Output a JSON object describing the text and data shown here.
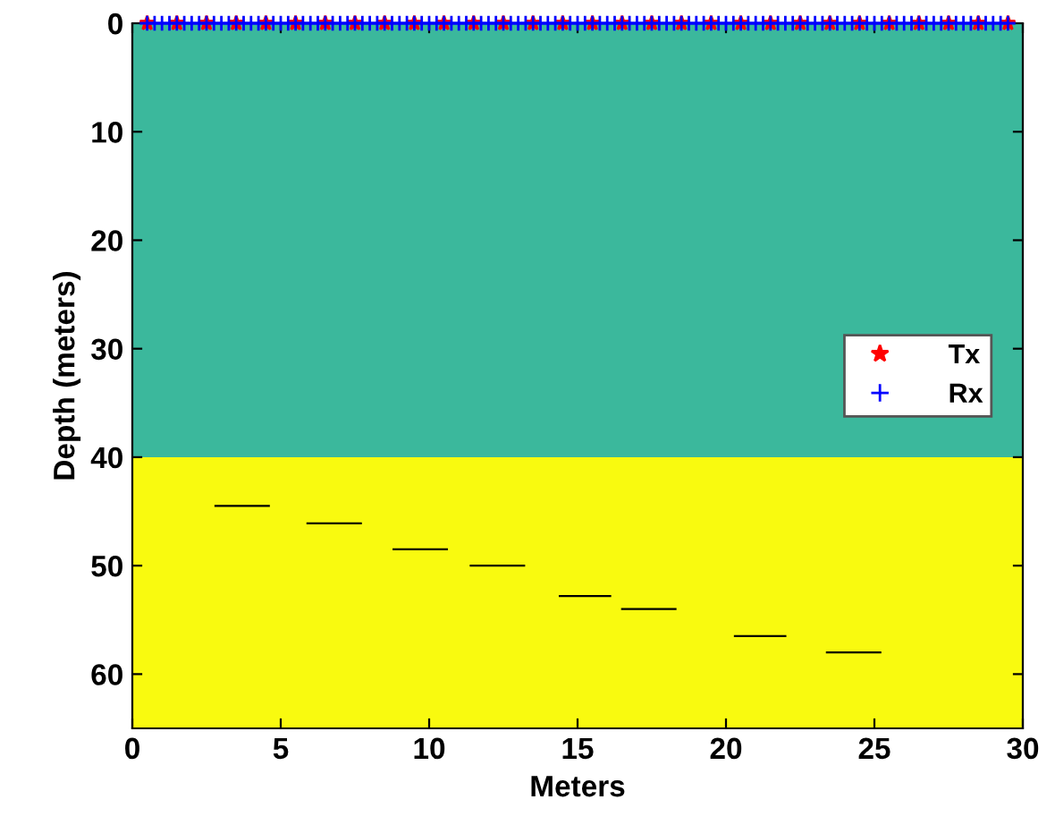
{
  "chart_data": {
    "type": "scatter",
    "xlabel": "Meters",
    "ylabel": "Depth (meters)",
    "xlim": [
      0,
      30
    ],
    "xticks": [
      0,
      5,
      10,
      15,
      20,
      25,
      30
    ],
    "ylim": [
      65,
      0
    ],
    "yticks": [
      0,
      10,
      20,
      30,
      40,
      50,
      60
    ],
    "grid": false,
    "legend": "right",
    "bands": [
      {
        "axis": "y",
        "from": 0,
        "to": 40,
        "color": "#3bb89c"
      },
      {
        "axis": "y",
        "from": 40,
        "to": 65,
        "color": "#f9fa0f"
      }
    ],
    "series": [
      {
        "type": "line",
        "color": "#000000",
        "marker": "none",
        "x": [
          2.8,
          4.6
        ],
        "values": [
          44.5,
          44.5
        ]
      },
      {
        "type": "line",
        "color": "#000000",
        "marker": "none",
        "x": [
          5.9,
          7.7
        ],
        "values": [
          46.1,
          46.1
        ]
      },
      {
        "type": "line",
        "color": "#000000",
        "marker": "none",
        "x": [
          8.8,
          10.6
        ],
        "values": [
          48.5,
          48.5
        ]
      },
      {
        "type": "line",
        "color": "#000000",
        "marker": "none",
        "x": [
          11.4,
          13.2
        ],
        "values": [
          50.0,
          50.0
        ]
      },
      {
        "type": "line",
        "color": "#000000",
        "marker": "none",
        "x": [
          14.4,
          16.1
        ],
        "values": [
          52.8,
          52.8
        ]
      },
      {
        "type": "line",
        "color": "#000000",
        "marker": "none",
        "x": [
          16.5,
          18.3
        ],
        "values": [
          54.0,
          54.0
        ]
      },
      {
        "type": "line",
        "color": "#000000",
        "marker": "none",
        "x": [
          20.3,
          22.0
        ],
        "values": [
          56.5,
          56.5
        ]
      },
      {
        "type": "line",
        "color": "#000000",
        "marker": "none",
        "x": [
          23.4,
          25.2
        ],
        "values": [
          58.0,
          58.0
        ]
      },
      {
        "name": "Tx",
        "color": "#ff0000",
        "marker": "star",
        "x": [
          0.5,
          1.5,
          2.5,
          3.5,
          4.5,
          5.5,
          6.5,
          7.5,
          8.5,
          9.5,
          10.5,
          11.5,
          12.5,
          13.5,
          14.5,
          15.5,
          16.5,
          17.5,
          18.5,
          19.5,
          20.5,
          21.5,
          22.5,
          23.5,
          24.5,
          25.5,
          26.5,
          27.5,
          28.5,
          29.5
        ],
        "values": [
          0,
          0,
          0,
          0,
          0,
          0,
          0,
          0,
          0,
          0,
          0,
          0,
          0,
          0,
          0,
          0,
          0,
          0,
          0,
          0,
          0,
          0,
          0,
          0,
          0,
          0,
          0,
          0,
          0,
          0
        ]
      },
      {
        "name": "Rx",
        "color": "#0000ff",
        "marker": "cross",
        "x": [
          0.5,
          0.75,
          1.0,
          1.25,
          1.5,
          1.75,
          2.0,
          2.25,
          2.5,
          2.75,
          3.0,
          3.25,
          3.5,
          3.75,
          4.0,
          4.25,
          4.5,
          4.75,
          5.0,
          5.25,
          5.5,
          5.75,
          6.0,
          6.25,
          6.5,
          6.75,
          7.0,
          7.25,
          7.5,
          7.75,
          8.0,
          8.25,
          8.5,
          8.75,
          9.0,
          9.25,
          9.5,
          9.75,
          10.0,
          10.25,
          10.5,
          10.75,
          11.0,
          11.25,
          11.5,
          11.75,
          12.0,
          12.25,
          12.5,
          12.75,
          13.0,
          13.25,
          13.5,
          13.75,
          14.0,
          14.25,
          14.5,
          14.75,
          15.0,
          15.25,
          15.5,
          15.75,
          16.0,
          16.25,
          16.5,
          16.75,
          17.0,
          17.25,
          17.5,
          17.75,
          18.0,
          18.25,
          18.5,
          18.75,
          19.0,
          19.25,
          19.5,
          19.75,
          20.0,
          20.25,
          20.5,
          20.75,
          21.0,
          21.25,
          21.5,
          21.75,
          22.0,
          22.25,
          22.5,
          22.75,
          23.0,
          23.25,
          23.5,
          23.75,
          24.0,
          24.25,
          24.5,
          24.75,
          25.0,
          25.25,
          25.5,
          25.75,
          26.0,
          26.25,
          26.5,
          26.75,
          27.0,
          27.25,
          27.5,
          27.75,
          28.0,
          28.25,
          28.5,
          28.75,
          29.0,
          29.25,
          29.5
        ],
        "values": [
          0,
          0,
          0,
          0,
          0,
          0,
          0,
          0,
          0,
          0,
          0,
          0,
          0,
          0,
          0,
          0,
          0,
          0,
          0,
          0,
          0,
          0,
          0,
          0,
          0,
          0,
          0,
          0,
          0,
          0,
          0,
          0,
          0,
          0,
          0,
          0,
          0,
          0,
          0,
          0,
          0,
          0,
          0,
          0,
          0,
          0,
          0,
          0,
          0,
          0,
          0,
          0,
          0,
          0,
          0,
          0,
          0,
          0,
          0,
          0,
          0,
          0,
          0,
          0,
          0,
          0,
          0,
          0,
          0,
          0,
          0,
          0,
          0,
          0,
          0,
          0,
          0,
          0,
          0,
          0,
          0,
          0,
          0,
          0,
          0,
          0,
          0,
          0,
          0,
          0,
          0,
          0,
          0,
          0,
          0,
          0,
          0,
          0,
          0,
          0,
          0,
          0,
          0,
          0,
          0,
          0,
          0,
          0,
          0,
          0,
          0,
          0,
          0,
          0,
          0,
          0,
          0
        ]
      }
    ]
  }
}
